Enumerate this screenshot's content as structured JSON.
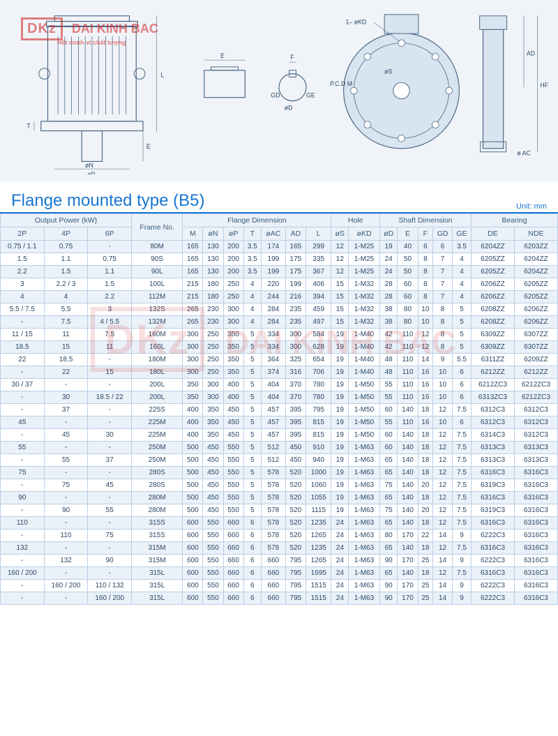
{
  "watermark": {
    "logo_code": "DKz",
    "brand": "DAI KINH BAC",
    "tagline": "Hết mình vì chất lượng"
  },
  "diagram": {
    "labels": [
      "L",
      "E",
      "T",
      "øN",
      "øP",
      "E",
      "F",
      "GD",
      "øD",
      "GE",
      "1– øKD",
      "øS",
      "P.C.D M",
      "AD",
      "HF",
      "ø AC"
    ]
  },
  "title": "Flange mounted type (B5)",
  "unit_label": "Unit: mm",
  "table": {
    "header_groups": [
      {
        "label": "Output Power (kW)",
        "span": 3
      },
      {
        "label": "Frame No.",
        "span": 1
      },
      {
        "label": "Flange Dimension",
        "span": 7
      },
      {
        "label": "Hole",
        "span": 2
      },
      {
        "label": "Shaft Dimension",
        "span": 5
      },
      {
        "label": "Bearing",
        "span": 2
      }
    ],
    "headers": [
      "2P",
      "4P",
      "6P",
      "",
      "M",
      "øN",
      "øP",
      "T",
      "øAC",
      "AD",
      "L",
      "øS",
      "øKD",
      "øD",
      "E",
      "F",
      "GD",
      "GE",
      "DE",
      "NDE"
    ],
    "rows": [
      [
        "0.75 / 1.1",
        "0.75",
        "-",
        "80M",
        "165",
        "130",
        "200",
        "3.5",
        "174",
        "165",
        "299",
        "12",
        "1-M25",
        "19",
        "40",
        "6",
        "6",
        "3.5",
        "6204ZZ",
        "6203ZZ"
      ],
      [
        "1.5",
        "1.1",
        "0.75",
        "90S",
        "165",
        "130",
        "200",
        "3.5",
        "199",
        "175",
        "335",
        "12",
        "1-M25",
        "24",
        "50",
        "8",
        "7",
        "4",
        "6205ZZ",
        "6204ZZ"
      ],
      [
        "2.2",
        "1.5",
        "1.1",
        "90L",
        "165",
        "130",
        "200",
        "3.5",
        "199",
        "175",
        "367",
        "12",
        "1-M25",
        "24",
        "50",
        "8",
        "7",
        "4",
        "6205ZZ",
        "6204ZZ"
      ],
      [
        "3",
        "2.2 / 3",
        "1.5",
        "100L",
        "215",
        "180",
        "250",
        "4",
        "220",
        "199",
        "406",
        "15",
        "1-M32",
        "28",
        "60",
        "8",
        "7",
        "4",
        "6206ZZ",
        "6205ZZ"
      ],
      [
        "4",
        "4",
        "2.2",
        "112M",
        "215",
        "180",
        "250",
        "4",
        "244",
        "216",
        "394",
        "15",
        "1-M32",
        "28",
        "60",
        "8",
        "7",
        "4",
        "6206ZZ",
        "6205ZZ"
      ],
      [
        "5.5 / 7.5",
        "5.5",
        "3",
        "132S",
        "265",
        "230",
        "300",
        "4",
        "284",
        "235",
        "459",
        "15",
        "1-M32",
        "38",
        "80",
        "10",
        "8",
        "5",
        "6208ZZ",
        "6206ZZ"
      ],
      [
        "-",
        "7.5",
        "4 / 5.5",
        "132M",
        "265",
        "230",
        "300",
        "4",
        "284",
        "235",
        "497",
        "15",
        "1-M32",
        "38",
        "80",
        "10",
        "8",
        "5",
        "6208ZZ",
        "6206ZZ"
      ],
      [
        "11 / 15",
        "11",
        "7.5",
        "160M",
        "300",
        "250",
        "350",
        "5",
        "334",
        "300",
        "584",
        "19",
        "1-M40",
        "42",
        "110",
        "12",
        "8",
        "5",
        "6309ZZ",
        "6307ZZ"
      ],
      [
        "18.5",
        "15",
        "11",
        "160L",
        "300",
        "250",
        "350",
        "5",
        "334",
        "300",
        "628",
        "19",
        "1-M40",
        "42",
        "110",
        "12",
        "8",
        "5",
        "6309ZZ",
        "6307ZZ"
      ],
      [
        "22",
        "18.5",
        "-",
        "180M",
        "300",
        "250",
        "350",
        "5",
        "364",
        "325",
        "654",
        "19",
        "1-M40",
        "48",
        "110",
        "14",
        "9",
        "5.5",
        "6311ZZ",
        "6209ZZ"
      ],
      [
        "-",
        "22",
        "15",
        "180L",
        "300",
        "250",
        "350",
        "5",
        "374",
        "316",
        "706",
        "19",
        "1-M40",
        "48",
        "110",
        "16",
        "10",
        "6",
        "6212ZZ",
        "6212ZZ"
      ],
      [
        "30 / 37",
        "-",
        "-",
        "200L",
        "350",
        "300",
        "400",
        "5",
        "404",
        "370",
        "780",
        "19",
        "1-M50",
        "55",
        "110",
        "16",
        "10",
        "6",
        "6212ZC3",
        "6212ZC3"
      ],
      [
        "-",
        "30",
        "18.5 / 22",
        "200L",
        "350",
        "300",
        "400",
        "5",
        "404",
        "370",
        "780",
        "19",
        "1-M50",
        "55",
        "110",
        "16",
        "10",
        "6",
        "6313ZC3",
        "6212ZC3"
      ],
      [
        "-",
        "37",
        "-",
        "225S",
        "400",
        "350",
        "450",
        "5",
        "457",
        "395",
        "795",
        "19",
        "1-M50",
        "60",
        "140",
        "18",
        "12",
        "7.5",
        "6312C3",
        "6312C3"
      ],
      [
        "45",
        "-",
        "-",
        "225M",
        "400",
        "350",
        "450",
        "5",
        "457",
        "395",
        "815",
        "19",
        "1-M50",
        "55",
        "110",
        "16",
        "10",
        "6",
        "6312C3",
        "6312C3"
      ],
      [
        "-",
        "45",
        "30",
        "225M",
        "400",
        "350",
        "450",
        "5",
        "457",
        "395",
        "815",
        "19",
        "1-M50",
        "60",
        "140",
        "18",
        "12",
        "7.5",
        "6314C3",
        "6312C3"
      ],
      [
        "55",
        "-",
        "-",
        "250M",
        "500",
        "450",
        "550",
        "5",
        "512",
        "450",
        "910",
        "19",
        "1-M63",
        "60",
        "140",
        "18",
        "12",
        "7.5",
        "6313C3",
        "6313C3"
      ],
      [
        "-",
        "55",
        "37",
        "250M",
        "500",
        "450",
        "550",
        "5",
        "512",
        "450",
        "940",
        "19",
        "1-M63",
        "65",
        "140",
        "18",
        "12",
        "7.5",
        "6313C3",
        "6313C3"
      ],
      [
        "75",
        "-",
        "-",
        "280S",
        "500",
        "450",
        "550",
        "5",
        "578",
        "520",
        "1000",
        "19",
        "1-M63",
        "65",
        "140",
        "18",
        "12",
        "7.5",
        "6316C3",
        "6316C3"
      ],
      [
        "-",
        "75",
        "45",
        "280S",
        "500",
        "450",
        "550",
        "5",
        "578",
        "520",
        "1060",
        "19",
        "1-M63",
        "75",
        "140",
        "20",
        "12",
        "7.5",
        "6319C3",
        "6316C3"
      ],
      [
        "90",
        "-",
        "-",
        "280M",
        "500",
        "450",
        "550",
        "5",
        "578",
        "520",
        "1055",
        "19",
        "1-M63",
        "65",
        "140",
        "18",
        "12",
        "7.5",
        "6316C3",
        "6316C3"
      ],
      [
        "-",
        "90",
        "55",
        "280M",
        "500",
        "450",
        "550",
        "5",
        "578",
        "520",
        "1115",
        "19",
        "1-M63",
        "75",
        "140",
        "20",
        "12",
        "7.5",
        "6319C3",
        "6316C3"
      ],
      [
        "110",
        "-",
        "-",
        "315S",
        "600",
        "550",
        "660",
        "6",
        "578",
        "520",
        "1235",
        "24",
        "1-M63",
        "65",
        "140",
        "18",
        "12",
        "7.5",
        "6316C3",
        "6316C3"
      ],
      [
        "-",
        "110",
        "75",
        "315S",
        "600",
        "550",
        "660",
        "6",
        "578",
        "520",
        "1265",
        "24",
        "1-M63",
        "80",
        "170",
        "22",
        "14",
        "9",
        "6222C3",
        "6316C3"
      ],
      [
        "132",
        "-",
        "-",
        "315M",
        "600",
        "550",
        "660",
        "6",
        "578",
        "520",
        "1235",
        "24",
        "1-M63",
        "65",
        "140",
        "18",
        "12",
        "7.5",
        "6316C3",
        "6316C3"
      ],
      [
        "-",
        "132",
        "90",
        "315M",
        "600",
        "550",
        "660",
        "6",
        "660",
        "795",
        "1265",
        "24",
        "1-M63",
        "90",
        "170",
        "25",
        "14",
        "9",
        "6222C3",
        "6316C3"
      ],
      [
        "160 / 200",
        "-",
        "-",
        "315L",
        "600",
        "550",
        "660",
        "6",
        "660",
        "795",
        "1695",
        "24",
        "1-M63",
        "65",
        "140",
        "18",
        "12",
        "7.5",
        "6316C3",
        "6316C3"
      ],
      [
        "-",
        "160 / 200",
        "110 / 132",
        "315L",
        "600",
        "550",
        "660",
        "6",
        "660",
        "795",
        "1515",
        "24",
        "1-M63",
        "90",
        "170",
        "25",
        "14",
        "9",
        "6222C3",
        "6316C3"
      ],
      [
        "-",
        "-",
        "160 / 200",
        "315L",
        "600",
        "550",
        "660",
        "6",
        "660",
        "795",
        "1515",
        "24",
        "1-M63",
        "90",
        "170",
        "25",
        "14",
        "9",
        "6222C3",
        "6316C3"
      ]
    ]
  },
  "colors": {
    "header_bg": "#eaf1f8",
    "row_alt": "#eaf1f8",
    "border": "#b8cfe6",
    "title": "#1976d2",
    "text": "#2a4766",
    "watermark": "#d32f2f"
  }
}
